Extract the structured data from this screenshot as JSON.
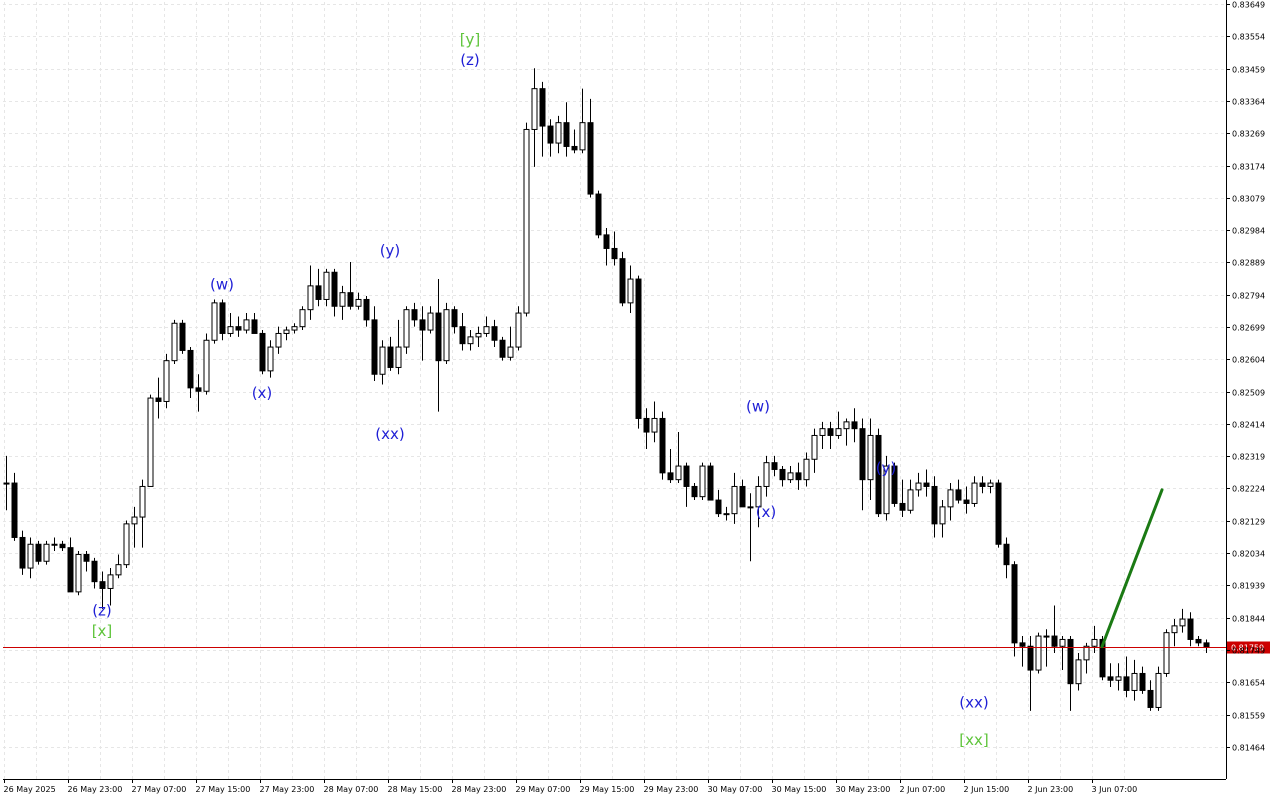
{
  "colors": {
    "background": "#ffffff",
    "grid": "#e6e6e6",
    "candle_up_fill": "#ffffff",
    "candle_down_fill": "#000000",
    "candle_line": "#000000",
    "price_line": "#cc0000",
    "price_label_bg": "#cc0000",
    "wave_blue": "#1f1fd6",
    "wave_green": "#5ec43a",
    "forecast_arrow": "#1b7a14"
  },
  "chart_data": {
    "type": "candlestick",
    "symbol_hint": "",
    "ylim": [
      0.81417,
      0.83649
    ],
    "y_tick_labels": [
      "0.83649",
      "0.83554",
      "0.83459",
      "0.83364",
      "0.83269",
      "0.83174",
      "0.83079",
      "0.82984",
      "0.82889",
      "0.82794",
      "0.82699",
      "0.82604",
      "0.82509",
      "0.82414",
      "0.82319",
      "0.82224",
      "0.82129",
      "0.82034",
      "0.81939",
      "0.81844",
      "0.81749",
      "0.81654",
      "0.81559",
      "0.81464"
    ],
    "x_tick_labels": [
      "26 May 2025",
      "26 May 23:00",
      "27 May 07:00",
      "27 May 15:00",
      "27 May 23:00",
      "28 May 07:00",
      "28 May 15:00",
      "28 May 23:00",
      "29 May 07:00",
      "29 May 15:00",
      "29 May 23:00",
      "30 May 07:00",
      "30 May 15:00",
      "30 May 23:00",
      "2 Jun 07:00",
      "2 Jun 15:00",
      "2 Jun 23:00",
      "3 Jun 07:00"
    ],
    "x_tick_bars": [
      0,
      8,
      16,
      24,
      32,
      40,
      48,
      56,
      64,
      72,
      80,
      88,
      96,
      104,
      112,
      120,
      128,
      136
    ],
    "current_price": 0.81759,
    "current_price_label": "0.81759",
    "grid": true,
    "candles": [
      {
        "o": 0.8224,
        "h": 0.8232,
        "l": 0.8216,
        "c": 0.8224
      },
      {
        "o": 0.8224,
        "h": 0.8227,
        "l": 0.8207,
        "c": 0.8208
      },
      {
        "o": 0.8208,
        "h": 0.821,
        "l": 0.8197,
        "c": 0.8199
      },
      {
        "o": 0.8199,
        "h": 0.8208,
        "l": 0.8196,
        "c": 0.8206
      },
      {
        "o": 0.8206,
        "h": 0.8207,
        "l": 0.82,
        "c": 0.8201
      },
      {
        "o": 0.8201,
        "h": 0.8207,
        "l": 0.82,
        "c": 0.8206
      },
      {
        "o": 0.8206,
        "h": 0.8208,
        "l": 0.8204,
        "c": 0.8206
      },
      {
        "o": 0.8206,
        "h": 0.8207,
        "l": 0.8204,
        "c": 0.8205
      },
      {
        "o": 0.8205,
        "h": 0.8208,
        "l": 0.8192,
        "c": 0.8192
      },
      {
        "o": 0.8192,
        "h": 0.8204,
        "l": 0.8191,
        "c": 0.8203
      },
      {
        "o": 0.8203,
        "h": 0.8204,
        "l": 0.8198,
        "c": 0.8201
      },
      {
        "o": 0.8201,
        "h": 0.8202,
        "l": 0.8193,
        "c": 0.8195
      },
      {
        "o": 0.8195,
        "h": 0.8198,
        "l": 0.8187,
        "c": 0.8193
      },
      {
        "o": 0.8193,
        "h": 0.8199,
        "l": 0.8188,
        "c": 0.8197
      },
      {
        "o": 0.8197,
        "h": 0.8203,
        "l": 0.8196,
        "c": 0.82
      },
      {
        "o": 0.82,
        "h": 0.8213,
        "l": 0.8199,
        "c": 0.8212
      },
      {
        "o": 0.8212,
        "h": 0.8217,
        "l": 0.8205,
        "c": 0.8214
      },
      {
        "o": 0.8214,
        "h": 0.8225,
        "l": 0.8205,
        "c": 0.8223
      },
      {
        "o": 0.8223,
        "h": 0.825,
        "l": 0.8223,
        "c": 0.8249
      },
      {
        "o": 0.8249,
        "h": 0.8255,
        "l": 0.8243,
        "c": 0.8248
      },
      {
        "o": 0.8248,
        "h": 0.8262,
        "l": 0.8246,
        "c": 0.826
      },
      {
        "o": 0.826,
        "h": 0.8272,
        "l": 0.8259,
        "c": 0.8271
      },
      {
        "o": 0.8271,
        "h": 0.8272,
        "l": 0.8262,
        "c": 0.8263
      },
      {
        "o": 0.8263,
        "h": 0.8264,
        "l": 0.8249,
        "c": 0.8252
      },
      {
        "o": 0.8252,
        "h": 0.8256,
        "l": 0.8245,
        "c": 0.8251
      },
      {
        "o": 0.8251,
        "h": 0.8268,
        "l": 0.825,
        "c": 0.8266
      },
      {
        "o": 0.8266,
        "h": 0.8278,
        "l": 0.8265,
        "c": 0.8277
      },
      {
        "o": 0.8277,
        "h": 0.8278,
        "l": 0.8266,
        "c": 0.8268
      },
      {
        "o": 0.8268,
        "h": 0.8274,
        "l": 0.8267,
        "c": 0.827
      },
      {
        "o": 0.827,
        "h": 0.8273,
        "l": 0.8267,
        "c": 0.8269
      },
      {
        "o": 0.8269,
        "h": 0.8274,
        "l": 0.8268,
        "c": 0.8272
      },
      {
        "o": 0.8272,
        "h": 0.8274,
        "l": 0.8268,
        "c": 0.8268
      },
      {
        "o": 0.8268,
        "h": 0.8269,
        "l": 0.8256,
        "c": 0.8257
      },
      {
        "o": 0.8257,
        "h": 0.8266,
        "l": 0.8255,
        "c": 0.8264
      },
      {
        "o": 0.8264,
        "h": 0.827,
        "l": 0.8262,
        "c": 0.8268
      },
      {
        "o": 0.8268,
        "h": 0.827,
        "l": 0.8266,
        "c": 0.8269
      },
      {
        "o": 0.8269,
        "h": 0.8271,
        "l": 0.8268,
        "c": 0.827
      },
      {
        "o": 0.827,
        "h": 0.8276,
        "l": 0.8269,
        "c": 0.8275
      },
      {
        "o": 0.8275,
        "h": 0.8288,
        "l": 0.8272,
        "c": 0.8282
      },
      {
        "o": 0.8282,
        "h": 0.8287,
        "l": 0.8276,
        "c": 0.8278
      },
      {
        "o": 0.8278,
        "h": 0.8287,
        "l": 0.8276,
        "c": 0.8286
      },
      {
        "o": 0.8286,
        "h": 0.8287,
        "l": 0.8273,
        "c": 0.8276
      },
      {
        "o": 0.8276,
        "h": 0.8282,
        "l": 0.8272,
        "c": 0.828
      },
      {
        "o": 0.828,
        "h": 0.8289,
        "l": 0.8275,
        "c": 0.8276
      },
      {
        "o": 0.8276,
        "h": 0.828,
        "l": 0.8275,
        "c": 0.8278
      },
      {
        "o": 0.8278,
        "h": 0.8279,
        "l": 0.827,
        "c": 0.8272
      },
      {
        "o": 0.8272,
        "h": 0.8276,
        "l": 0.8254,
        "c": 0.8256
      },
      {
        "o": 0.8256,
        "h": 0.8266,
        "l": 0.8253,
        "c": 0.8264
      },
      {
        "o": 0.8264,
        "h": 0.8267,
        "l": 0.8257,
        "c": 0.8258
      },
      {
        "o": 0.8258,
        "h": 0.8272,
        "l": 0.8256,
        "c": 0.8264
      },
      {
        "o": 0.8264,
        "h": 0.8276,
        "l": 0.8262,
        "c": 0.8275
      },
      {
        "o": 0.8275,
        "h": 0.8277,
        "l": 0.827,
        "c": 0.8272
      },
      {
        "o": 0.8272,
        "h": 0.8276,
        "l": 0.826,
        "c": 0.8269
      },
      {
        "o": 0.8269,
        "h": 0.8276,
        "l": 0.8268,
        "c": 0.8274
      },
      {
        "o": 0.8274,
        "h": 0.8284,
        "l": 0.8245,
        "c": 0.826
      },
      {
        "o": 0.826,
        "h": 0.8277,
        "l": 0.8259,
        "c": 0.8275
      },
      {
        "o": 0.8275,
        "h": 0.8276,
        "l": 0.8268,
        "c": 0.827
      },
      {
        "o": 0.827,
        "h": 0.8274,
        "l": 0.8263,
        "c": 0.8265
      },
      {
        "o": 0.8265,
        "h": 0.8269,
        "l": 0.8263,
        "c": 0.8267
      },
      {
        "o": 0.8267,
        "h": 0.827,
        "l": 0.8264,
        "c": 0.8268
      },
      {
        "o": 0.8268,
        "h": 0.8273,
        "l": 0.8267,
        "c": 0.827
      },
      {
        "o": 0.827,
        "h": 0.8272,
        "l": 0.8264,
        "c": 0.8266
      },
      {
        "o": 0.8266,
        "h": 0.8267,
        "l": 0.826,
        "c": 0.8261
      },
      {
        "o": 0.8261,
        "h": 0.827,
        "l": 0.826,
        "c": 0.8264
      },
      {
        "o": 0.8264,
        "h": 0.8276,
        "l": 0.8263,
        "c": 0.8274
      },
      {
        "o": 0.8274,
        "h": 0.833,
        "l": 0.8273,
        "c": 0.8328
      },
      {
        "o": 0.8328,
        "h": 0.8346,
        "l": 0.8317,
        "c": 0.834
      },
      {
        "o": 0.834,
        "h": 0.8342,
        "l": 0.832,
        "c": 0.8329
      },
      {
        "o": 0.8329,
        "h": 0.8331,
        "l": 0.832,
        "c": 0.8324
      },
      {
        "o": 0.8324,
        "h": 0.8332,
        "l": 0.8321,
        "c": 0.833
      },
      {
        "o": 0.833,
        "h": 0.8336,
        "l": 0.832,
        "c": 0.8323
      },
      {
        "o": 0.8323,
        "h": 0.8328,
        "l": 0.8321,
        "c": 0.8322
      },
      {
        "o": 0.8322,
        "h": 0.834,
        "l": 0.8321,
        "c": 0.833
      },
      {
        "o": 0.833,
        "h": 0.8337,
        "l": 0.8308,
        "c": 0.8309
      },
      {
        "o": 0.8309,
        "h": 0.831,
        "l": 0.8296,
        "c": 0.8297
      },
      {
        "o": 0.8297,
        "h": 0.8299,
        "l": 0.8288,
        "c": 0.8293
      },
      {
        "o": 0.8293,
        "h": 0.8298,
        "l": 0.8288,
        "c": 0.829
      },
      {
        "o": 0.829,
        "h": 0.8292,
        "l": 0.8276,
        "c": 0.8277
      },
      {
        "o": 0.8277,
        "h": 0.8288,
        "l": 0.8274,
        "c": 0.8284
      },
      {
        "o": 0.8284,
        "h": 0.8285,
        "l": 0.824,
        "c": 0.8243
      },
      {
        "o": 0.8243,
        "h": 0.8246,
        "l": 0.8234,
        "c": 0.8239
      },
      {
        "o": 0.8239,
        "h": 0.8248,
        "l": 0.8236,
        "c": 0.8243
      },
      {
        "o": 0.8243,
        "h": 0.8245,
        "l": 0.8225,
        "c": 0.8227
      },
      {
        "o": 0.8227,
        "h": 0.8234,
        "l": 0.8224,
        "c": 0.8225
      },
      {
        "o": 0.8225,
        "h": 0.8239,
        "l": 0.8224,
        "c": 0.8229
      },
      {
        "o": 0.8229,
        "h": 0.823,
        "l": 0.8217,
        "c": 0.8223
      },
      {
        "o": 0.8223,
        "h": 0.8224,
        "l": 0.8219,
        "c": 0.822
      },
      {
        "o": 0.822,
        "h": 0.823,
        "l": 0.8219,
        "c": 0.8229
      },
      {
        "o": 0.8229,
        "h": 0.823,
        "l": 0.8219,
        "c": 0.8219
      },
      {
        "o": 0.8219,
        "h": 0.8222,
        "l": 0.8214,
        "c": 0.8215
      },
      {
        "o": 0.8215,
        "h": 0.8217,
        "l": 0.8213,
        "c": 0.8215
      },
      {
        "o": 0.8215,
        "h": 0.8227,
        "l": 0.8212,
        "c": 0.8223
      },
      {
        "o": 0.8223,
        "h": 0.8225,
        "l": 0.8217,
        "c": 0.8217
      },
      {
        "o": 0.8217,
        "h": 0.8221,
        "l": 0.8201,
        "c": 0.8217
      },
      {
        "o": 0.8217,
        "h": 0.8226,
        "l": 0.8211,
        "c": 0.8223
      },
      {
        "o": 0.8223,
        "h": 0.8232,
        "l": 0.822,
        "c": 0.823
      },
      {
        "o": 0.823,
        "h": 0.8232,
        "l": 0.8226,
        "c": 0.8228
      },
      {
        "o": 0.8228,
        "h": 0.8229,
        "l": 0.8223,
        "c": 0.8225
      },
      {
        "o": 0.8225,
        "h": 0.8229,
        "l": 0.8224,
        "c": 0.8227
      },
      {
        "o": 0.8227,
        "h": 0.823,
        "l": 0.8222,
        "c": 0.8225
      },
      {
        "o": 0.8225,
        "h": 0.8233,
        "l": 0.8223,
        "c": 0.8231
      },
      {
        "o": 0.8231,
        "h": 0.824,
        "l": 0.8227,
        "c": 0.8238
      },
      {
        "o": 0.8238,
        "h": 0.8242,
        "l": 0.8234,
        "c": 0.824
      },
      {
        "o": 0.824,
        "h": 0.8242,
        "l": 0.8234,
        "c": 0.8238
      },
      {
        "o": 0.8238,
        "h": 0.8245,
        "l": 0.8237,
        "c": 0.824
      },
      {
        "o": 0.824,
        "h": 0.8243,
        "l": 0.8235,
        "c": 0.8242
      },
      {
        "o": 0.8242,
        "h": 0.8246,
        "l": 0.8236,
        "c": 0.824
      },
      {
        "o": 0.824,
        "h": 0.8243,
        "l": 0.8216,
        "c": 0.8225
      },
      {
        "o": 0.8225,
        "h": 0.8243,
        "l": 0.8219,
        "c": 0.8238
      },
      {
        "o": 0.8238,
        "h": 0.824,
        "l": 0.8214,
        "c": 0.8215
      },
      {
        "o": 0.8215,
        "h": 0.8232,
        "l": 0.8213,
        "c": 0.8229
      },
      {
        "o": 0.8229,
        "h": 0.823,
        "l": 0.8217,
        "c": 0.8218
      },
      {
        "o": 0.8218,
        "h": 0.8225,
        "l": 0.8214,
        "c": 0.8216
      },
      {
        "o": 0.8216,
        "h": 0.8225,
        "l": 0.8215,
        "c": 0.8222
      },
      {
        "o": 0.8222,
        "h": 0.8227,
        "l": 0.822,
        "c": 0.8224
      },
      {
        "o": 0.8224,
        "h": 0.8228,
        "l": 0.822,
        "c": 0.8223
      },
      {
        "o": 0.8223,
        "h": 0.8226,
        "l": 0.8208,
        "c": 0.8212
      },
      {
        "o": 0.8212,
        "h": 0.8219,
        "l": 0.8208,
        "c": 0.8217
      },
      {
        "o": 0.8217,
        "h": 0.8224,
        "l": 0.8213,
        "c": 0.8222
      },
      {
        "o": 0.8222,
        "h": 0.8225,
        "l": 0.8218,
        "c": 0.8219
      },
      {
        "o": 0.8219,
        "h": 0.8223,
        "l": 0.8215,
        "c": 0.8218
      },
      {
        "o": 0.8218,
        "h": 0.8226,
        "l": 0.8217,
        "c": 0.8224
      },
      {
        "o": 0.8224,
        "h": 0.8226,
        "l": 0.8221,
        "c": 0.8223
      },
      {
        "o": 0.8223,
        "h": 0.8225,
        "l": 0.8221,
        "c": 0.8224
      },
      {
        "o": 0.8224,
        "h": 0.8225,
        "l": 0.8205,
        "c": 0.8206
      },
      {
        "o": 0.8206,
        "h": 0.8208,
        "l": 0.8196,
        "c": 0.82
      },
      {
        "o": 0.82,
        "h": 0.8201,
        "l": 0.8173,
        "c": 0.8177
      },
      {
        "o": 0.8177,
        "h": 0.8179,
        "l": 0.817,
        "c": 0.8176
      },
      {
        "o": 0.8176,
        "h": 0.8179,
        "l": 0.8157,
        "c": 0.8169
      },
      {
        "o": 0.8169,
        "h": 0.818,
        "l": 0.8168,
        "c": 0.8179
      },
      {
        "o": 0.8179,
        "h": 0.8181,
        "l": 0.817,
        "c": 0.8179
      },
      {
        "o": 0.8179,
        "h": 0.8188,
        "l": 0.8174,
        "c": 0.8176
      },
      {
        "o": 0.8176,
        "h": 0.8179,
        "l": 0.8169,
        "c": 0.8178
      },
      {
        "o": 0.8178,
        "h": 0.8179,
        "l": 0.8157,
        "c": 0.8165
      },
      {
        "o": 0.8165,
        "h": 0.8174,
        "l": 0.8163,
        "c": 0.8172
      },
      {
        "o": 0.8172,
        "h": 0.8177,
        "l": 0.8168,
        "c": 0.8176
      },
      {
        "o": 0.8176,
        "h": 0.8182,
        "l": 0.8174,
        "c": 0.8178
      },
      {
        "o": 0.8178,
        "h": 0.8179,
        "l": 0.8166,
        "c": 0.8167
      },
      {
        "o": 0.8167,
        "h": 0.8171,
        "l": 0.8164,
        "c": 0.8166
      },
      {
        "o": 0.8166,
        "h": 0.8171,
        "l": 0.8163,
        "c": 0.8167
      },
      {
        "o": 0.8167,
        "h": 0.8173,
        "l": 0.8161,
        "c": 0.8163
      },
      {
        "o": 0.8163,
        "h": 0.8172,
        "l": 0.816,
        "c": 0.8168
      },
      {
        "o": 0.8168,
        "h": 0.817,
        "l": 0.8162,
        "c": 0.8163
      },
      {
        "o": 0.8163,
        "h": 0.8166,
        "l": 0.8157,
        "c": 0.8158
      },
      {
        "o": 0.8158,
        "h": 0.817,
        "l": 0.8157,
        "c": 0.8168
      },
      {
        "o": 0.8168,
        "h": 0.8181,
        "l": 0.8167,
        "c": 0.818
      },
      {
        "o": 0.818,
        "h": 0.8184,
        "l": 0.8176,
        "c": 0.8182
      },
      {
        "o": 0.8182,
        "h": 0.8187,
        "l": 0.818,
        "c": 0.8184
      },
      {
        "o": 0.8184,
        "h": 0.8186,
        "l": 0.8176,
        "c": 0.8178
      },
      {
        "o": 0.8178,
        "h": 0.8179,
        "l": 0.8176,
        "c": 0.8177
      },
      {
        "o": 0.8177,
        "h": 0.8178,
        "l": 0.8174,
        "c": 0.81759
      }
    ],
    "wave_labels": [
      {
        "text": "(z)",
        "bar": 12,
        "price": 0.8185,
        "color": "blue"
      },
      {
        "text": "[x]",
        "bar": 12,
        "price": 0.8179,
        "color": "green"
      },
      {
        "text": "(w)",
        "bar": 27,
        "price": 0.8281,
        "color": "blue"
      },
      {
        "text": "(x)",
        "bar": 32,
        "price": 0.8249,
        "color": "blue"
      },
      {
        "text": "(y)",
        "bar": 48,
        "price": 0.8291,
        "color": "blue"
      },
      {
        "text": "(xx)",
        "bar": 48,
        "price": 0.8237,
        "color": "blue"
      },
      {
        "text": "[y]",
        "bar": 58,
        "price": 0.8353,
        "color": "green"
      },
      {
        "text": "(z)",
        "bar": 58,
        "price": 0.8347,
        "color": "blue"
      },
      {
        "text": "(w)",
        "bar": 94,
        "price": 0.8245,
        "color": "blue"
      },
      {
        "text": "(x)",
        "bar": 95,
        "price": 0.8214,
        "color": "blue"
      },
      {
        "text": "(y)",
        "bar": 110,
        "price": 0.8227,
        "color": "blue"
      },
      {
        "text": "(xx)",
        "bar": 121,
        "price": 0.8158,
        "color": "blue"
      },
      {
        "text": "[xx]",
        "bar": 121,
        "price": 0.8147,
        "color": "green"
      }
    ],
    "forecast": {
      "from_bar": 137,
      "from_price": 0.81759,
      "to_bar": 144,
      "to_price": 0.8222
    }
  }
}
